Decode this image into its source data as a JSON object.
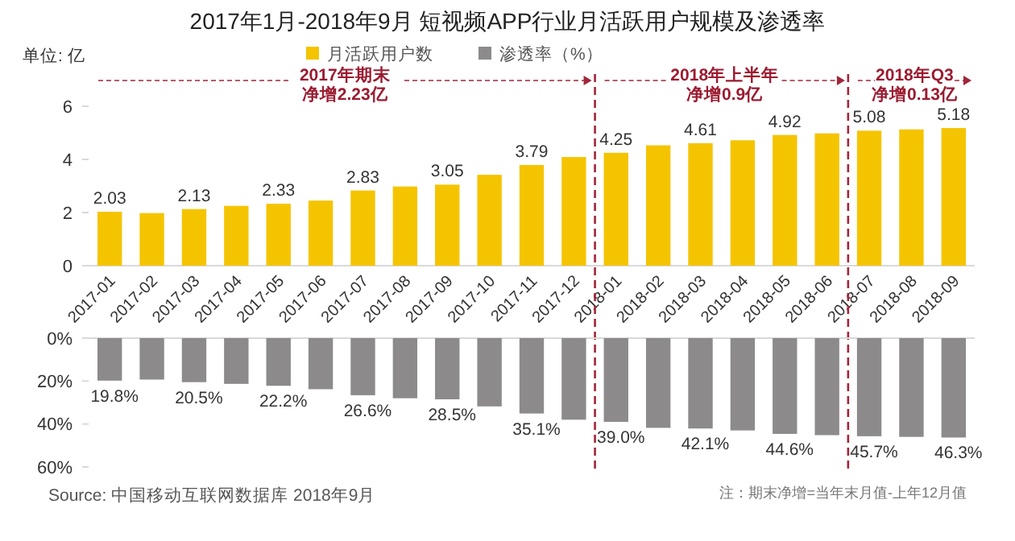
{
  "chart_data": [
    {
      "type": "bar",
      "title": "2017年1月-2018年9月 短视频APP行业月活跃用户规模及渗透率",
      "ylabel": "单位: 亿",
      "categories": [
        "2017-01",
        "2017-02",
        "2017-03",
        "2017-04",
        "2017-05",
        "2017-06",
        "2017-07",
        "2017-08",
        "2017-09",
        "2017-10",
        "2017-11",
        "2017-12",
        "2018-01",
        "2018-02",
        "2018-03",
        "2018-04",
        "2018-05",
        "2018-06",
        "2018-07",
        "2018-08",
        "2018-09"
      ],
      "series": [
        {
          "name": "月活跃用户数",
          "color": "#f5c400",
          "values": [
            2.03,
            1.98,
            2.13,
            2.25,
            2.33,
            2.45,
            2.83,
            2.98,
            3.05,
            3.42,
            3.79,
            4.09,
            4.25,
            4.53,
            4.61,
            4.72,
            4.92,
            4.98,
            5.08,
            5.13,
            5.18
          ],
          "value_labels": [
            "2.03",
            null,
            "2.13",
            null,
            "2.33",
            null,
            "2.83",
            null,
            "3.05",
            null,
            "3.79",
            null,
            "4.25",
            null,
            "4.61",
            null,
            "4.92",
            null,
            "5.08",
            null,
            "5.18"
          ]
        }
      ],
      "ylim": [
        0,
        6
      ],
      "yticks": [
        0,
        2,
        4,
        6
      ],
      "legend": "top",
      "ref_lines": [
        {
          "axis": "x",
          "value": "2018-01",
          "color": "#a0263a",
          "line_style": "dashed"
        },
        {
          "axis": "x",
          "value": "2018-07",
          "color": "#a0263a",
          "line_style": "dashed"
        }
      ],
      "annotations": [
        "2017年期末",
        "净增2.23亿",
        "2018年上半年",
        "净增0.9亿",
        "2018年Q3",
        "净增0.13亿"
      ]
    },
    {
      "type": "bar",
      "categories": [
        "2017-01",
        "2017-02",
        "2017-03",
        "2017-04",
        "2017-05",
        "2017-06",
        "2017-07",
        "2017-08",
        "2017-09",
        "2017-10",
        "2017-11",
        "2017-12",
        "2018-01",
        "2018-02",
        "2018-03",
        "2018-04",
        "2018-05",
        "2018-06",
        "2018-07",
        "2018-08",
        "2018-09"
      ],
      "series": [
        {
          "name": "渗透率（%）",
          "color": "#8c8a8b",
          "values": [
            19.8,
            19.3,
            20.5,
            21.3,
            22.2,
            23.8,
            26.6,
            28.0,
            28.5,
            31.8,
            35.1,
            38.0,
            39.0,
            41.8,
            42.1,
            43.0,
            44.6,
            45.2,
            45.7,
            46.0,
            46.3
          ],
          "value_labels": [
            "19.8%",
            null,
            "20.5%",
            null,
            "22.2%",
            null,
            "26.6%",
            null,
            "28.5%",
            null,
            "35.1%",
            null,
            "39.0%",
            null,
            "42.1%",
            null,
            "44.6%",
            null,
            "45.7%",
            null,
            "46.3%"
          ]
        }
      ],
      "ylim": [
        60,
        0
      ],
      "yticks": [
        {
          "value": 0,
          "label": "0%"
        },
        {
          "value": 20,
          "label": "20%"
        },
        {
          "value": 40,
          "label": "40%"
        },
        {
          "value": 60,
          "label": "60%"
        }
      ],
      "tick_labels": "y",
      "legend": "top",
      "annotations": [
        "Source:  中国移动互联网数据库 2018年9月",
        "注：期末净增=当年末月值-上年12月值"
      ]
    }
  ]
}
